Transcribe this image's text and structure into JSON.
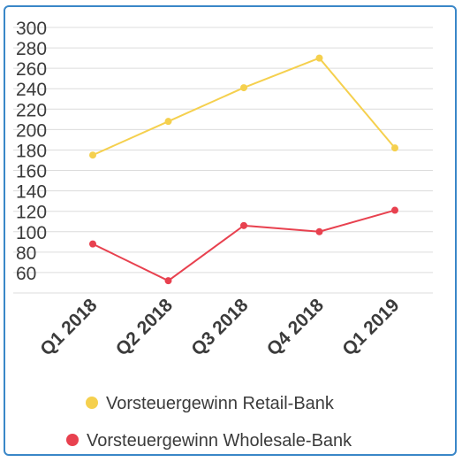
{
  "chart_data": {
    "type": "line",
    "categories": [
      "Q1 2018",
      "Q2 2018",
      "Q3 2018",
      "Q4 2018",
      "Q1 2019"
    ],
    "series": [
      {
        "name": "Vorsteuergewinn Retail-Bank",
        "values": [
          175,
          208,
          241,
          270,
          182
        ],
        "color": "#f5d04e"
      },
      {
        "name": "Vorsteuergewinn Wholesale-Bank",
        "values": [
          88,
          52,
          106,
          100,
          121
        ],
        "color": "#e8414f"
      }
    ],
    "yticks": [
      60,
      80,
      100,
      120,
      140,
      160,
      180,
      200,
      220,
      240,
      260,
      280,
      300
    ],
    "ylim": [
      40,
      300
    ],
    "grid": true,
    "legend": "bottom",
    "title": "",
    "xlabel": "",
    "ylabel": ""
  }
}
